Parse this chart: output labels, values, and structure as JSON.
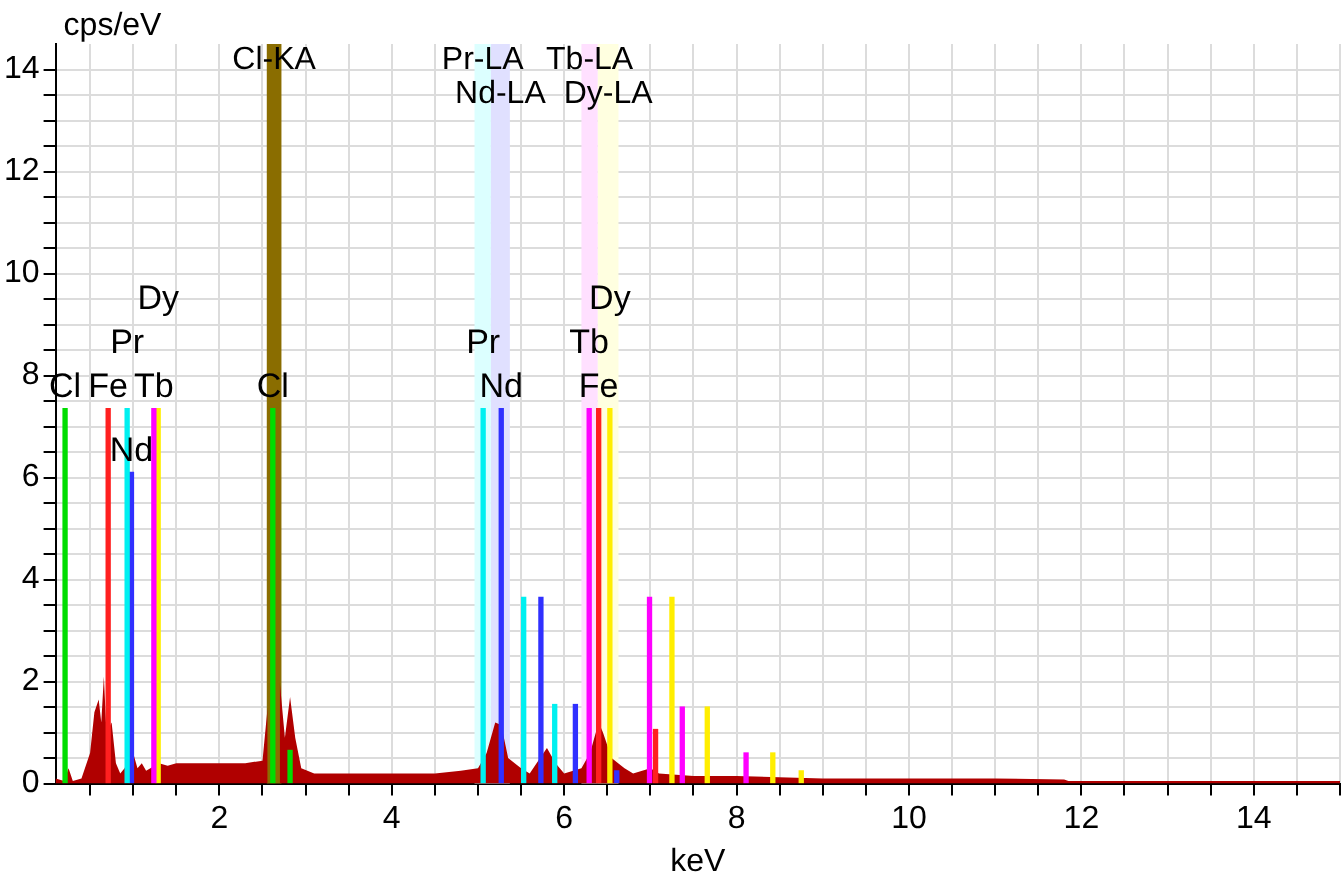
{
  "chart_data": {
    "type": "area",
    "xlabel": "keV",
    "ylabel": "cps/eV",
    "xlim": [
      0.1,
      15
    ],
    "ylim": [
      0,
      14.5
    ],
    "xticks": [
      {
        "value": 0.5,
        "label": null
      },
      {
        "value": 1,
        "label": null
      },
      {
        "value": 1.5,
        "label": null
      },
      2,
      {
        "value": 2.5,
        "label": null
      },
      {
        "value": 3,
        "label": null
      },
      {
        "value": 3.5,
        "label": null
      },
      4,
      {
        "value": 4.5,
        "label": null
      },
      {
        "value": 5,
        "label": null
      },
      {
        "value": 5.5,
        "label": null
      },
      6,
      {
        "value": 6.5,
        "label": null
      },
      {
        "value": 7,
        "label": null
      },
      {
        "value": 7.5,
        "label": null
      },
      8,
      {
        "value": 8.5,
        "label": null
      },
      {
        "value": 9,
        "label": null
      },
      {
        "value": 9.5,
        "label": null
      },
      10,
      {
        "value": 10.5,
        "label": null
      },
      {
        "value": 11,
        "label": null
      },
      {
        "value": 11.5,
        "label": null
      },
      12,
      {
        "value": 12.5,
        "label": null
      },
      {
        "value": 13,
        "label": null
      },
      {
        "value": 13.5,
        "label": null
      },
      14,
      {
        "value": 14.5,
        "label": null
      },
      {
        "value": 15,
        "label": null
      }
    ],
    "yticks": [
      0,
      {
        "value": 0.5,
        "label": null
      },
      {
        "value": 1,
        "label": null
      },
      {
        "value": 1.5,
        "label": null
      },
      2,
      {
        "value": 2.5,
        "label": null
      },
      {
        "value": 3,
        "label": null
      },
      {
        "value": 3.5,
        "label": null
      },
      4,
      {
        "value": 4.5,
        "label": null
      },
      {
        "value": 5,
        "label": null
      },
      {
        "value": 5.5,
        "label": null
      },
      6,
      {
        "value": 6.5,
        "label": null
      },
      {
        "value": 7,
        "label": null
      },
      {
        "value": 7.5,
        "label": null
      },
      8,
      {
        "value": 8.5,
        "label": null
      },
      {
        "value": 9,
        "label": null
      },
      {
        "value": 9.5,
        "label": null
      },
      10,
      {
        "value": 10.5,
        "label": null
      },
      {
        "value": 11,
        "label": null
      },
      {
        "value": 11.5,
        "label": null
      },
      12,
      {
        "value": 12.5,
        "label": null
      },
      {
        "value": 13,
        "label": null
      },
      {
        "value": 13.5,
        "label": null
      },
      14
    ],
    "grid": true,
    "legend": false,
    "series": [
      {
        "color": "#b00000",
        "x": [
          0.1,
          0.2,
          0.25,
          0.3,
          0.4,
          0.5,
          0.55,
          0.6,
          0.63,
          0.66,
          0.69,
          0.75,
          0.8,
          0.85,
          0.9,
          0.95,
          1.0,
          1.05,
          1.1,
          1.15,
          1.2,
          1.3,
          1.4,
          1.5,
          1.7,
          2.0,
          2.3,
          2.5,
          2.56,
          2.6,
          2.66,
          2.7,
          2.76,
          2.82,
          2.88,
          2.95,
          3.1,
          3.5,
          4.0,
          4.5,
          4.8,
          5.0,
          5.1,
          5.2,
          5.27,
          5.35,
          5.5,
          5.6,
          5.8,
          5.9,
          6.0,
          6.2,
          6.3,
          6.4,
          6.45,
          6.55,
          6.7,
          6.8,
          7.0,
          7.1,
          7.5,
          8.0,
          9.0,
          10.0,
          11.0,
          11.8,
          11.85,
          12.5,
          13.5,
          15
        ],
        "values": [
          0.1,
          0.05,
          0.3,
          0.05,
          0.1,
          0.6,
          1.4,
          1.65,
          1.2,
          2.1,
          1.0,
          1.2,
          0.4,
          0.2,
          0.3,
          0.5,
          0.6,
          0.3,
          0.4,
          0.25,
          0.3,
          0.4,
          0.35,
          0.4,
          0.4,
          0.4,
          0.4,
          0.45,
          1.5,
          null,
          null,
          2.0,
          0.9,
          1.7,
          0.9,
          0.3,
          0.2,
          0.2,
          0.2,
          0.2,
          0.25,
          0.3,
          0.6,
          1.2,
          1.15,
          0.5,
          0.3,
          0.2,
          0.7,
          0.4,
          0.2,
          0.3,
          0.6,
          1.2,
          1.0,
          0.5,
          0.3,
          0.2,
          0.3,
          0.2,
          0.15,
          0.15,
          0.1,
          0.1,
          0.1,
          0.08,
          0.05,
          0.05,
          0.05,
          0.05
        ]
      },
      {
        "type": "bar",
        "color": "#00dd00",
        "x": [
          0.21,
          2.62,
          2.82
        ],
        "values": [
          7.35,
          7.35,
          0.65
        ]
      },
      {
        "type": "bar",
        "color": "#ff2020",
        "x": [
          0.71,
          6.4,
          7.06
        ],
        "values": [
          7.35,
          7.35,
          1.06
        ]
      },
      {
        "type": "bar",
        "color": "#00f0f0",
        "x": [
          0.93,
          5.06,
          5.53,
          5.89
        ],
        "values": [
          7.35,
          7.35,
          3.65,
          1.55
        ]
      },
      {
        "type": "bar",
        "color": "#3030ff",
        "x": [
          0.98,
          5.27,
          5.73,
          6.13,
          6.61
        ],
        "values": [
          6.1,
          7.35,
          3.65,
          1.55,
          0.25
        ]
      },
      {
        "type": "bar",
        "color": "#ff00ff",
        "x": [
          1.24,
          6.29,
          6.99,
          7.37,
          8.11
        ],
        "values": [
          7.35,
          7.35,
          3.65,
          1.5,
          0.6
        ]
      },
      {
        "type": "bar",
        "color": "#ffee00",
        "x": [
          1.29,
          6.53,
          7.25,
          7.66,
          8.42,
          8.75
        ],
        "values": [
          7.35,
          7.35,
          3.65,
          1.5,
          0.6,
          0.25
        ]
      }
    ],
    "bands": [
      {
        "axis": "x",
        "from": 2.55,
        "to": 2.72,
        "label": "Cl-KA",
        "color": "#8a6d00"
      },
      {
        "axis": "x",
        "from": 4.96,
        "to": 5.15,
        "label": "Pr-LA",
        "color": "#dcffff"
      },
      {
        "axis": "x",
        "from": 5.15,
        "to": 5.37,
        "label": "Nd-LA",
        "color": "#e0e0ff"
      },
      {
        "axis": "x",
        "from": 6.2,
        "to": 6.39,
        "label": "Tb-LA",
        "color": "#ffe0ff"
      },
      {
        "axis": "x",
        "from": 6.39,
        "to": 6.63,
        "label": "Dy-LA",
        "color": "#ffffe0"
      }
    ],
    "annotations": [
      {
        "text": "Cl",
        "x": 0.21,
        "y": 7.35
      },
      {
        "text": "Fe",
        "x": 0.71,
        "y": 7.35
      },
      {
        "text": "Nd",
        "x": 0.98,
        "y": 6.1
      },
      {
        "text": "Cl",
        "x": 2.62,
        "y": 7.35
      },
      {
        "text": "Nd",
        "x": 5.27,
        "y": 7.35
      },
      {
        "text": "Fe",
        "x": 6.4,
        "y": 7.35
      },
      {
        "text": "Pr",
        "x": 0.93,
        "y": 7.35
      },
      {
        "text": "Tb",
        "x": 1.24,
        "y": 7.35
      },
      {
        "text": "Dy",
        "x": 1.29,
        "y": 7.35
      },
      {
        "text": "Pr",
        "x": 5.06,
        "y": 7.35
      },
      {
        "text": "Tb",
        "x": 6.29,
        "y": 7.35
      },
      {
        "text": "Dy",
        "x": 6.53,
        "y": 7.35
      }
    ]
  }
}
